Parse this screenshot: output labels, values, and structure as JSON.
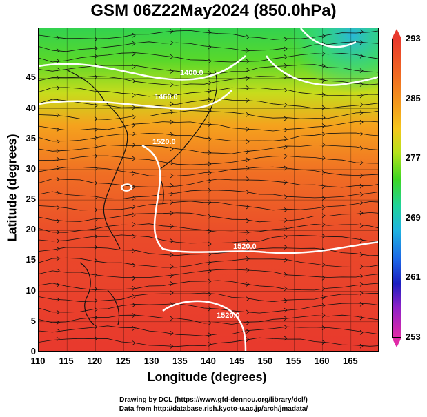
{
  "title": "GSM 06Z22May2024 (850.0hPa)",
  "x_axis": {
    "label": "Longitude (degrees)",
    "ticks": [
      "110",
      "115",
      "120",
      "125",
      "130",
      "135",
      "140",
      "145",
      "150",
      "155",
      "160",
      "165"
    ]
  },
  "y_axis": {
    "label": "Latitude  (degrees)",
    "ticks": [
      "0",
      "5",
      "10",
      "15",
      "20",
      "25",
      "30",
      "35",
      "40",
      "45"
    ]
  },
  "colorbar": {
    "ticks": [
      "293",
      "285",
      "277",
      "269",
      "261",
      "253"
    ],
    "top_color": "#e8392d",
    "bottom_color": "#e02aa7"
  },
  "contour_labels": [
    "1400.0",
    "1460.0",
    "1520.0",
    "1520.0",
    "1520.0"
  ],
  "credits": [
    "Drawing by DCL (https://www.gfd-dennou.org/library/dcl/)",
    "Data from http://database.rish.kyoto-u.ac.jp/arch/jmadata/"
  ]
}
